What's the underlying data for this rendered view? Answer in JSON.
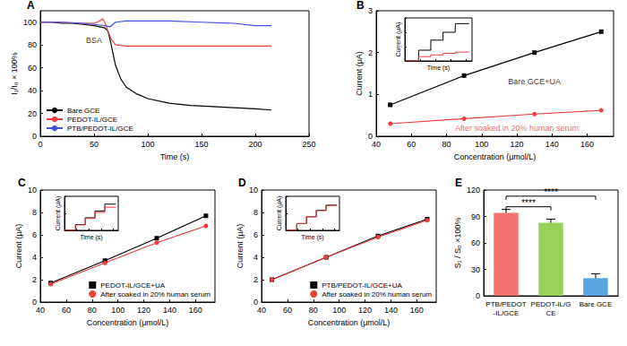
{
  "chart_data": [
    {
      "title": "A",
      "type": "line",
      "x_label": "Time (s)",
      "y_label": "I₁/I₀ × 100%",
      "xlim": [
        0,
        250
      ],
      "xticks": [
        0,
        50,
        100,
        150,
        200,
        250
      ],
      "ylim": [
        0,
        110
      ],
      "yticks": [
        0,
        20,
        40,
        60,
        80,
        100
      ],
      "legend": "lower left",
      "series": [
        {
          "name": "Bare GCE",
          "color": "#000000",
          "x": [
            0,
            10,
            20,
            30,
            40,
            50,
            55,
            60,
            63,
            66,
            70,
            75,
            80,
            90,
            100,
            120,
            140,
            160,
            180,
            200,
            215
          ],
          "values": [
            100,
            100,
            99,
            99,
            98,
            97,
            96,
            95,
            92,
            80,
            62,
            50,
            43,
            37,
            33,
            29,
            27,
            26,
            25,
            24,
            23
          ]
        },
        {
          "name": "PEDOT-IL/GCE",
          "color": "#f03c3c",
          "x": [
            0,
            20,
            40,
            50,
            55,
            58,
            60,
            63,
            66,
            70,
            80,
            100,
            150,
            200,
            215
          ],
          "values": [
            100,
            100,
            99,
            99,
            101,
            103,
            100,
            92,
            85,
            80,
            79,
            79,
            79,
            79,
            79
          ]
        },
        {
          "name": "PTB/PEDOT-IL/GCE",
          "color": "#3f51d8",
          "x": [
            0,
            20,
            40,
            50,
            60,
            65,
            70,
            80,
            100,
            120,
            150,
            180,
            200,
            215
          ],
          "values": [
            100,
            100,
            99,
            98,
            97,
            96,
            100,
            101,
            101,
            101,
            100,
            99,
            97,
            97
          ]
        }
      ],
      "annotations": [
        {
          "text": "BSA",
          "x": 50,
          "y": 84
        }
      ]
    },
    {
      "title": "B",
      "type": "line",
      "x_label": "Concentration (μmol/L)",
      "y_label": "Current (μA)",
      "xlim": [
        40,
        175
      ],
      "xticks": [
        40,
        60,
        80,
        100,
        120,
        140,
        160
      ],
      "ylim": [
        0,
        3
      ],
      "yticks": [
        0,
        1,
        2,
        3
      ],
      "series": [
        {
          "color": "#000000",
          "marker": "square",
          "x": [
            48,
            90,
            130,
            168
          ],
          "values": [
            0.75,
            1.45,
            2.0,
            2.5
          ]
        },
        {
          "color": "#f03c3c",
          "marker": "circle",
          "x": [
            48,
            90,
            130,
            168
          ],
          "values": [
            0.3,
            0.42,
            0.53,
            0.62
          ]
        }
      ],
      "annotations": [
        {
          "text": "Bare GCE+UA",
          "x": 130,
          "y": 1.3,
          "color": "#000000"
        },
        {
          "text": "After soaked in 20% human serum",
          "x": 120,
          "y": 0.2,
          "color": "#f03c3c"
        }
      ]
    },
    {
      "type": "line",
      "x_label": "Time (s)",
      "y_label": "Current (μA)",
      "tick_labels": false,
      "xlim": [
        0,
        220
      ],
      "xticks": [
        0,
        50,
        100,
        150,
        200
      ],
      "ylim": [
        0,
        3
      ],
      "yticks": [
        0,
        1,
        2,
        3
      ],
      "series": [
        {
          "color": "#000000",
          "x": [
            0,
            45,
            45,
            85,
            85,
            125,
            125,
            165,
            165,
            210
          ],
          "values": [
            0,
            0,
            0.75,
            0.75,
            1.45,
            1.45,
            2.0,
            2.0,
            2.6,
            2.6
          ]
        },
        {
          "color": "#f03c3c",
          "x": [
            0,
            45,
            45,
            85,
            85,
            125,
            125,
            165,
            165,
            210
          ],
          "values": [
            0,
            0,
            0.3,
            0.3,
            0.42,
            0.42,
            0.53,
            0.53,
            0.62,
            0.62
          ]
        }
      ]
    },
    {
      "title": "C",
      "type": "line",
      "x_label": "Concentration (μmol/L)",
      "y_label": "Current (μA)",
      "xlim": [
        40,
        175
      ],
      "xticks": [
        40,
        60,
        80,
        100,
        120,
        140,
        160
      ],
      "ylim": [
        0,
        10
      ],
      "yticks": [
        0,
        2,
        4,
        6,
        8,
        10
      ],
      "legend": "lower right",
      "series": [
        {
          "name": "PEDOT-IL/GCE+UA",
          "color": "#000000",
          "marker": "square",
          "x": [
            48,
            90,
            130,
            168
          ],
          "values": [
            1.7,
            3.7,
            5.7,
            7.7
          ]
        },
        {
          "name": "After soaked in 20% human serum",
          "color": "#f03c3c",
          "marker": "circle",
          "x": [
            48,
            90,
            130,
            168
          ],
          "values": [
            1.6,
            3.5,
            5.3,
            6.8
          ]
        }
      ]
    },
    {
      "type": "line",
      "x_label": "Time (s)",
      "y_label": "Current (μA)",
      "tick_labels": false,
      "xlim": [
        0,
        220
      ],
      "xticks": [
        0,
        50,
        100,
        150,
        200
      ],
      "ylim": [
        0,
        10
      ],
      "yticks": [
        0,
        5,
        10
      ],
      "series": [
        {
          "color": "#000000",
          "x": [
            0,
            45,
            45,
            85,
            85,
            125,
            125,
            165,
            165,
            210
          ],
          "values": [
            0,
            0,
            1.7,
            1.7,
            3.7,
            3.7,
            5.7,
            5.7,
            7.7,
            7.7
          ]
        },
        {
          "color": "#f03c3c",
          "x": [
            0,
            45,
            45,
            85,
            85,
            125,
            125,
            165,
            165,
            210
          ],
          "values": [
            0,
            0,
            1.6,
            1.6,
            3.5,
            3.5,
            5.3,
            5.3,
            6.8,
            6.8
          ]
        }
      ]
    },
    {
      "title": "D",
      "type": "line",
      "x_label": "Concentration (μmol/L)",
      "y_label": "Current (μA)",
      "xlim": [
        40,
        175
      ],
      "xticks": [
        40,
        60,
        80,
        100,
        120,
        140,
        160
      ],
      "ylim": [
        0,
        10
      ],
      "yticks": [
        0,
        2,
        4,
        6,
        8,
        10
      ],
      "legend": "lower right",
      "series": [
        {
          "name": "PTB/PEDOT-IL/GCE+UA",
          "color": "#000000",
          "marker": "square",
          "x": [
            48,
            90,
            130,
            168
          ],
          "values": [
            2.0,
            4.0,
            5.9,
            7.4
          ]
        },
        {
          "name": "After soaked in 20% human serum",
          "color": "#f03c3c",
          "marker": "circle",
          "x": [
            48,
            90,
            130,
            168
          ],
          "values": [
            2.0,
            4.0,
            5.8,
            7.3
          ]
        }
      ]
    },
    {
      "type": "line",
      "x_label": "Time (s)",
      "y_label": "Current (μA)",
      "tick_labels": false,
      "xlim": [
        0,
        220
      ],
      "xticks": [
        0,
        50,
        100,
        150,
        200
      ],
      "ylim": [
        0,
        10
      ],
      "yticks": [
        0,
        5,
        10
      ],
      "series": [
        {
          "color": "#000000",
          "x": [
            0,
            45,
            45,
            85,
            85,
            125,
            125,
            165,
            165,
            210
          ],
          "values": [
            0,
            0,
            2.0,
            2.0,
            4.0,
            4.0,
            5.9,
            5.9,
            7.4,
            7.4
          ]
        },
        {
          "color": "#f03c3c",
          "x": [
            0,
            45,
            45,
            85,
            85,
            125,
            125,
            165,
            165,
            210
          ],
          "values": [
            0,
            0,
            2.0,
            2.0,
            4.0,
            4.0,
            5.8,
            5.8,
            7.3,
            7.3
          ]
        }
      ]
    },
    {
      "title": "E",
      "type": "bar",
      "y_label": "S₁ / S₀ ×100%",
      "categories": [
        "PTB/PEDOT-IL/GCE",
        "PEDOT-IL/GCE",
        "Bare GCE"
      ],
      "values": [
        94,
        83,
        20
      ],
      "errors": [
        4,
        4,
        5
      ],
      "colors": [
        "#f4716f",
        "#98d05a",
        "#5aa5e0"
      ],
      "ylim": [
        0,
        120
      ],
      "yticks": [
        0,
        30,
        60,
        90,
        120
      ],
      "significance": [
        {
          "from": "PTB/PEDOT-IL/GCE",
          "to": "PEDOT-IL/GCE",
          "y": 101,
          "label": "****"
        },
        {
          "from": "PTB/PEDOT-IL/GCE",
          "to": "Bare GCE",
          "y": 113,
          "label": "****"
        }
      ]
    }
  ]
}
